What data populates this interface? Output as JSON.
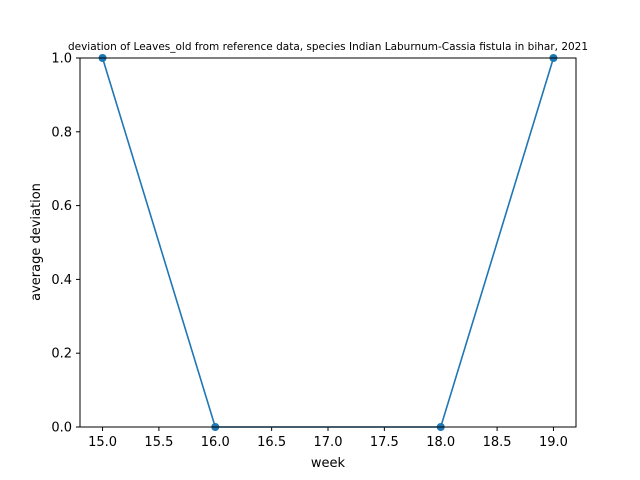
{
  "chart_data": {
    "type": "line",
    "title": "deviation of Leaves_old from reference data, species Indian Laburnum-Cassia fistula in bihar, 2021",
    "xlabel": "week",
    "ylabel": "average deviation",
    "xlim": [
      14.8,
      19.2
    ],
    "ylim": [
      0.0,
      1.0
    ],
    "xticks": [
      15.0,
      15.5,
      16.0,
      16.5,
      17.0,
      17.5,
      18.0,
      18.5,
      19.0
    ],
    "xtick_labels": [
      "15.0",
      "15.5",
      "16.0",
      "16.5",
      "17.0",
      "17.5",
      "18.0",
      "18.5",
      "19.0"
    ],
    "yticks": [
      0.0,
      0.2,
      0.4,
      0.6,
      0.8,
      1.0
    ],
    "ytick_labels": [
      "0.0",
      "0.2",
      "0.4",
      "0.6",
      "0.8",
      "1.0"
    ],
    "grid": false,
    "series": [
      {
        "color": "#1f77b4",
        "x": [
          15,
          16,
          18,
          19
        ],
        "y": [
          1.0,
          0.0,
          0.0,
          1.0
        ]
      }
    ]
  }
}
